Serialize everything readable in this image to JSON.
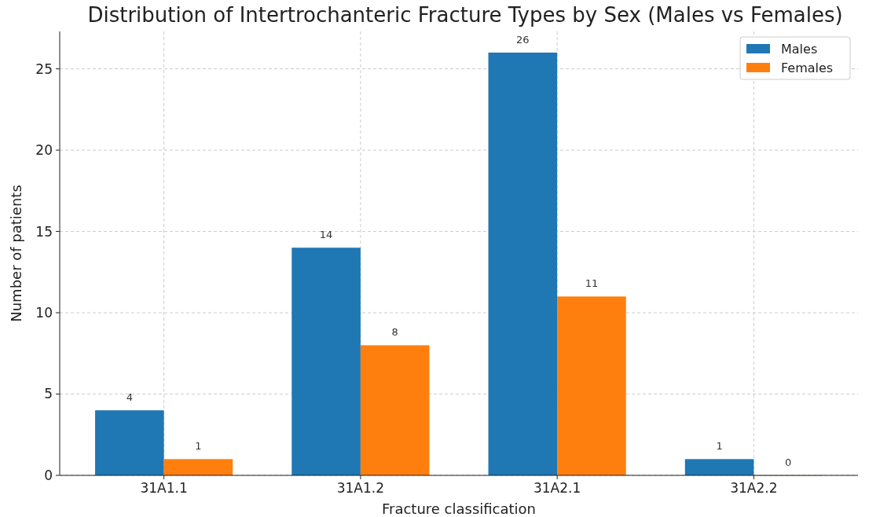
{
  "chart_data": {
    "type": "bar",
    "title": "Distribution of Intertrochanteric Fracture Types by Sex (Males vs Females)",
    "xlabel": "Fracture classification",
    "ylabel": "Number of patients",
    "categories": [
      "31A1.1",
      "31A1.2",
      "31A2.1",
      "31A2.2"
    ],
    "series": [
      {
        "name": "Males",
        "color": "#1f77b4",
        "values": [
          4,
          14,
          26,
          1
        ]
      },
      {
        "name": "Females",
        "color": "#ff7f0e",
        "values": [
          1,
          8,
          11,
          0
        ]
      }
    ],
    "ylim": [
      0,
      27.3
    ],
    "yticks": [
      0,
      5,
      10,
      15,
      20,
      25
    ],
    "grid": true,
    "legend": "top right",
    "data_labels": true
  }
}
